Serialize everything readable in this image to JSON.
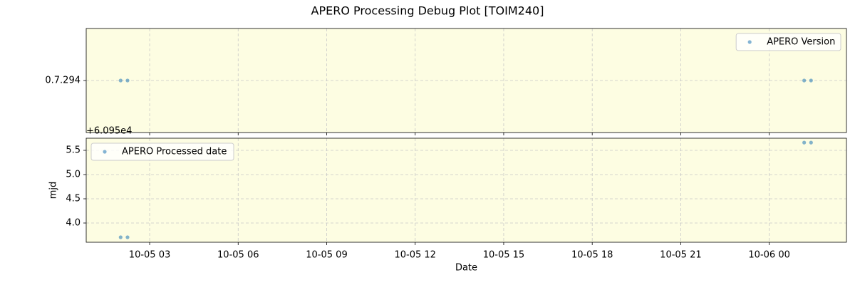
{
  "title": "APERO Processing Debug Plot [TOIM240]",
  "chart_data": [
    {
      "type": "scatter",
      "x": [
        "10-05 02:01",
        "10-05 02:15",
        "10-06 01:11",
        "10-06 01:25"
      ],
      "series": [
        {
          "name": "APERO Version",
          "color": "#1f77b4",
          "values": [
            "0.7.294",
            "0.7.294",
            "0.7.294",
            "0.7.294"
          ]
        }
      ],
      "y_categories": [
        "0.7.294"
      ],
      "xlim": [
        "10-05 00:51",
        "10-06 02:37"
      ],
      "xticks": [
        "10-05 03",
        "10-05 06",
        "10-05 09",
        "10-05 12",
        "10-05 15",
        "10-05 18",
        "10-05 21",
        "10-06 00"
      ],
      "xtick_labels": false,
      "grid": true,
      "legend": "upper right",
      "background": "#fdfde2"
    },
    {
      "type": "scatter",
      "x": [
        "10-05 02:01",
        "10-05 02:15",
        "10-06 01:11",
        "10-06 01:25"
      ],
      "series": [
        {
          "name": "APERO Processed date",
          "color": "#1f77b4",
          "values": [
            3.706,
            3.706,
            5.66,
            5.66
          ]
        }
      ],
      "ylabel": "mjd",
      "xlabel": "Date",
      "y_offset_label": "+6.095e4",
      "xlim": [
        "10-05 00:51",
        "10-06 02:37"
      ],
      "xticks": [
        "10-05 03",
        "10-05 06",
        "10-05 09",
        "10-05 12",
        "10-05 15",
        "10-05 18",
        "10-05 21",
        "10-06 00"
      ],
      "xtick_labels": true,
      "ylim": [
        3.603,
        5.75
      ],
      "yticks": [
        {
          "value": 4,
          "label": "4.0"
        },
        {
          "value": 4.5,
          "label": "4.5"
        },
        {
          "value": 5,
          "label": "5.0"
        },
        {
          "value": 5.5,
          "label": "5.5"
        }
      ],
      "grid": true,
      "legend": "upper left",
      "background": "#fdfde2"
    }
  ]
}
